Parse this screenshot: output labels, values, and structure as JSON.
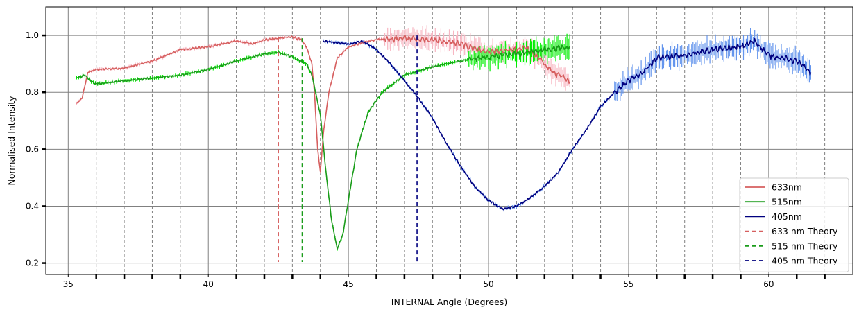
{
  "chart_data": {
    "type": "line",
    "xlabel": "INTERNAL Angle (Degrees)",
    "ylabel": "Normalised Intensity",
    "xlim": [
      34.2,
      63.0
    ],
    "ylim": [
      0.16,
      1.1
    ],
    "x_ticks": [
      "35",
      "40",
      "45",
      "50",
      "55",
      "60"
    ],
    "y_ticks": [
      "0.2",
      "0.4",
      "0.6",
      "0.8",
      "1.0"
    ],
    "grid": true,
    "minor_grid_x": [
      36,
      37,
      38,
      39,
      41,
      42,
      43,
      44,
      46,
      47,
      48,
      49,
      51,
      52,
      53,
      54,
      56,
      57,
      58,
      59,
      61,
      62
    ],
    "legend_position": "lower-right",
    "series": [
      {
        "name": "633nm",
        "color": "#d65f5f",
        "error_color": "#f7b6c2",
        "x": [
          35.3,
          35.5,
          35.7,
          36.0,
          37.0,
          38.0,
          39.0,
          40.0,
          41.0,
          41.6,
          42.0,
          42.5,
          43.0,
          43.3,
          43.5,
          43.7,
          43.8,
          43.9,
          44.0,
          44.1,
          44.3,
          44.6,
          45.0,
          45.5,
          46.0,
          47.0,
          48.0,
          49.0,
          50.0,
          51.0,
          51.3,
          51.8,
          52.3,
          52.9
        ],
        "y": [
          0.76,
          0.78,
          0.87,
          0.88,
          0.885,
          0.91,
          0.95,
          0.96,
          0.98,
          0.97,
          0.985,
          0.99,
          0.995,
          0.985,
          0.96,
          0.9,
          0.78,
          0.6,
          0.52,
          0.65,
          0.8,
          0.92,
          0.96,
          0.975,
          0.985,
          0.99,
          0.985,
          0.97,
          0.94,
          0.95,
          0.96,
          0.92,
          0.87,
          0.84
        ],
        "error_start": 46.3
      },
      {
        "name": "515nm",
        "color": "#1a9c1a",
        "error_color": "#00ee00",
        "x": [
          35.3,
          35.6,
          35.8,
          36.0,
          37.0,
          38.0,
          39.0,
          40.0,
          41.0,
          42.0,
          42.5,
          43.0,
          43.5,
          43.7,
          44.0,
          44.2,
          44.4,
          44.6,
          44.8,
          45.0,
          45.3,
          45.7,
          46.2,
          47.0,
          48.0,
          49.0,
          50.0,
          51.0,
          52.0,
          52.9
        ],
        "y": [
          0.85,
          0.86,
          0.84,
          0.83,
          0.84,
          0.85,
          0.86,
          0.88,
          0.91,
          0.935,
          0.94,
          0.925,
          0.9,
          0.86,
          0.72,
          0.52,
          0.35,
          0.25,
          0.3,
          0.42,
          0.6,
          0.73,
          0.8,
          0.86,
          0.89,
          0.91,
          0.925,
          0.935,
          0.95,
          0.96
        ],
        "error_start": 49.3
      },
      {
        "name": "405nm",
        "color": "#00007f",
        "error_color": "#6495ed",
        "x": [
          44.1,
          45.0,
          45.5,
          46.0,
          46.5,
          47.0,
          47.5,
          48.0,
          48.5,
          49.0,
          49.5,
          50.0,
          50.5,
          51.0,
          51.5,
          52.0,
          52.5,
          53.0,
          53.5,
          54.0,
          54.5,
          55.0,
          55.5,
          56.0,
          57.0,
          58.0,
          59.0,
          59.5,
          60.0,
          61.0,
          61.5
        ],
        "y": [
          0.98,
          0.97,
          0.98,
          0.95,
          0.9,
          0.84,
          0.78,
          0.71,
          0.62,
          0.54,
          0.47,
          0.42,
          0.39,
          0.4,
          0.43,
          0.47,
          0.52,
          0.6,
          0.67,
          0.75,
          0.8,
          0.84,
          0.87,
          0.92,
          0.93,
          0.95,
          0.96,
          0.98,
          0.93,
          0.91,
          0.87
        ],
        "error_start": 54.5
      }
    ],
    "theory_lines": [
      {
        "name": "633 nm Theory",
        "x": 42.5,
        "y_top": 0.99,
        "color": "#d65f5f"
      },
      {
        "name": "515 nm Theory",
        "x": 43.35,
        "y_top": 0.99,
        "color": "#1a9c1a"
      },
      {
        "name": "405 nm Theory",
        "x": 47.45,
        "y_top": 1.0,
        "color": "#00007f"
      }
    ]
  }
}
